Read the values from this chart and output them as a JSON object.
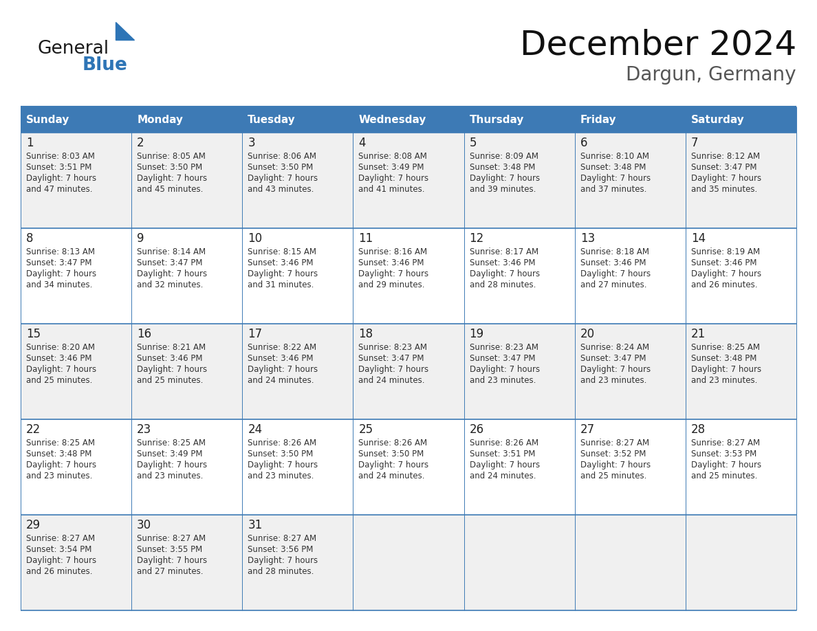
{
  "title": "December 2024",
  "subtitle": "Dargun, Germany",
  "header_bg_color": "#3d7ab5",
  "header_text_color": "#ffffff",
  "day_names": [
    "Sunday",
    "Monday",
    "Tuesday",
    "Wednesday",
    "Thursday",
    "Friday",
    "Saturday"
  ],
  "row_bg_even": "#f0f0f0",
  "row_bg_odd": "#ffffff",
  "border_color": "#3d7ab5",
  "date_color": "#222222",
  "text_color": "#333333",
  "title_color": "#111111",
  "subtitle_color": "#555555",
  "generalblue_black": "#1a1a1a",
  "generalblue_blue": "#2e75b6",
  "calendar_data": [
    [
      {
        "day": 1,
        "sunrise": "8:03 AM",
        "sunset": "3:51 PM",
        "daylight": "7 hours",
        "daylight2": "and 47 minutes."
      },
      {
        "day": 2,
        "sunrise": "8:05 AM",
        "sunset": "3:50 PM",
        "daylight": "7 hours",
        "daylight2": "and 45 minutes."
      },
      {
        "day": 3,
        "sunrise": "8:06 AM",
        "sunset": "3:50 PM",
        "daylight": "7 hours",
        "daylight2": "and 43 minutes."
      },
      {
        "day": 4,
        "sunrise": "8:08 AM",
        "sunset": "3:49 PM",
        "daylight": "7 hours",
        "daylight2": "and 41 minutes."
      },
      {
        "day": 5,
        "sunrise": "8:09 AM",
        "sunset": "3:48 PM",
        "daylight": "7 hours",
        "daylight2": "and 39 minutes."
      },
      {
        "day": 6,
        "sunrise": "8:10 AM",
        "sunset": "3:48 PM",
        "daylight": "7 hours",
        "daylight2": "and 37 minutes."
      },
      {
        "day": 7,
        "sunrise": "8:12 AM",
        "sunset": "3:47 PM",
        "daylight": "7 hours",
        "daylight2": "and 35 minutes."
      }
    ],
    [
      {
        "day": 8,
        "sunrise": "8:13 AM",
        "sunset": "3:47 PM",
        "daylight": "7 hours",
        "daylight2": "and 34 minutes."
      },
      {
        "day": 9,
        "sunrise": "8:14 AM",
        "sunset": "3:47 PM",
        "daylight": "7 hours",
        "daylight2": "and 32 minutes."
      },
      {
        "day": 10,
        "sunrise": "8:15 AM",
        "sunset": "3:46 PM",
        "daylight": "7 hours",
        "daylight2": "and 31 minutes."
      },
      {
        "day": 11,
        "sunrise": "8:16 AM",
        "sunset": "3:46 PM",
        "daylight": "7 hours",
        "daylight2": "and 29 minutes."
      },
      {
        "day": 12,
        "sunrise": "8:17 AM",
        "sunset": "3:46 PM",
        "daylight": "7 hours",
        "daylight2": "and 28 minutes."
      },
      {
        "day": 13,
        "sunrise": "8:18 AM",
        "sunset": "3:46 PM",
        "daylight": "7 hours",
        "daylight2": "and 27 minutes."
      },
      {
        "day": 14,
        "sunrise": "8:19 AM",
        "sunset": "3:46 PM",
        "daylight": "7 hours",
        "daylight2": "and 26 minutes."
      }
    ],
    [
      {
        "day": 15,
        "sunrise": "8:20 AM",
        "sunset": "3:46 PM",
        "daylight": "7 hours",
        "daylight2": "and 25 minutes."
      },
      {
        "day": 16,
        "sunrise": "8:21 AM",
        "sunset": "3:46 PM",
        "daylight": "7 hours",
        "daylight2": "and 25 minutes."
      },
      {
        "day": 17,
        "sunrise": "8:22 AM",
        "sunset": "3:46 PM",
        "daylight": "7 hours",
        "daylight2": "and 24 minutes."
      },
      {
        "day": 18,
        "sunrise": "8:23 AM",
        "sunset": "3:47 PM",
        "daylight": "7 hours",
        "daylight2": "and 24 minutes."
      },
      {
        "day": 19,
        "sunrise": "8:23 AM",
        "sunset": "3:47 PM",
        "daylight": "7 hours",
        "daylight2": "and 23 minutes."
      },
      {
        "day": 20,
        "sunrise": "8:24 AM",
        "sunset": "3:47 PM",
        "daylight": "7 hours",
        "daylight2": "and 23 minutes."
      },
      {
        "day": 21,
        "sunrise": "8:25 AM",
        "sunset": "3:48 PM",
        "daylight": "7 hours",
        "daylight2": "and 23 minutes."
      }
    ],
    [
      {
        "day": 22,
        "sunrise": "8:25 AM",
        "sunset": "3:48 PM",
        "daylight": "7 hours",
        "daylight2": "and 23 minutes."
      },
      {
        "day": 23,
        "sunrise": "8:25 AM",
        "sunset": "3:49 PM",
        "daylight": "7 hours",
        "daylight2": "and 23 minutes."
      },
      {
        "day": 24,
        "sunrise": "8:26 AM",
        "sunset": "3:50 PM",
        "daylight": "7 hours",
        "daylight2": "and 23 minutes."
      },
      {
        "day": 25,
        "sunrise": "8:26 AM",
        "sunset": "3:50 PM",
        "daylight": "7 hours",
        "daylight2": "and 24 minutes."
      },
      {
        "day": 26,
        "sunrise": "8:26 AM",
        "sunset": "3:51 PM",
        "daylight": "7 hours",
        "daylight2": "and 24 minutes."
      },
      {
        "day": 27,
        "sunrise": "8:27 AM",
        "sunset": "3:52 PM",
        "daylight": "7 hours",
        "daylight2": "and 25 minutes."
      },
      {
        "day": 28,
        "sunrise": "8:27 AM",
        "sunset": "3:53 PM",
        "daylight": "7 hours",
        "daylight2": "and 25 minutes."
      }
    ],
    [
      {
        "day": 29,
        "sunrise": "8:27 AM",
        "sunset": "3:54 PM",
        "daylight": "7 hours",
        "daylight2": "and 26 minutes."
      },
      {
        "day": 30,
        "sunrise": "8:27 AM",
        "sunset": "3:55 PM",
        "daylight": "7 hours",
        "daylight2": "and 27 minutes."
      },
      {
        "day": 31,
        "sunrise": "8:27 AM",
        "sunset": "3:56 PM",
        "daylight": "7 hours",
        "daylight2": "and 28 minutes."
      },
      null,
      null,
      null,
      null
    ]
  ]
}
